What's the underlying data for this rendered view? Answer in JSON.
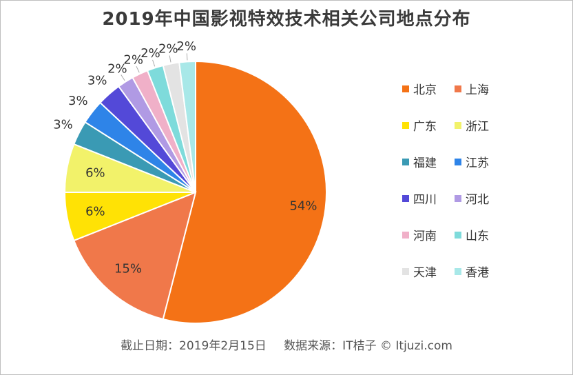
{
  "chart_data": {
    "type": "pie",
    "title": "2019年中国影视特效技术相关公司地点分布",
    "categories": [
      "北京",
      "上海",
      "广东",
      "浙江",
      "福建",
      "江苏",
      "四川",
      "河北",
      "河南",
      "山东",
      "天津",
      "香港"
    ],
    "values": [
      54,
      15,
      6,
      6,
      3,
      3,
      3,
      2,
      2,
      2,
      2,
      2
    ],
    "labels": [
      "54%",
      "15%",
      "6%",
      "6%",
      "3%",
      "3%",
      "3%",
      "2%",
      "2%",
      "2%",
      "2%",
      "2%"
    ],
    "colors": [
      "#F47216",
      "#F0784A",
      "#FFE205",
      "#F2F26A",
      "#3A9AB4",
      "#2E84E8",
      "#5349D8",
      "#B09AE4",
      "#F0B0C8",
      "#7EDBDB",
      "#E3E3E3",
      "#A8E8E8"
    ],
    "legend_position": "right"
  },
  "footer": {
    "date": "截止日期：2019年2月15日",
    "source": "数据来源：IT桔子 © Itjuzi.com"
  }
}
